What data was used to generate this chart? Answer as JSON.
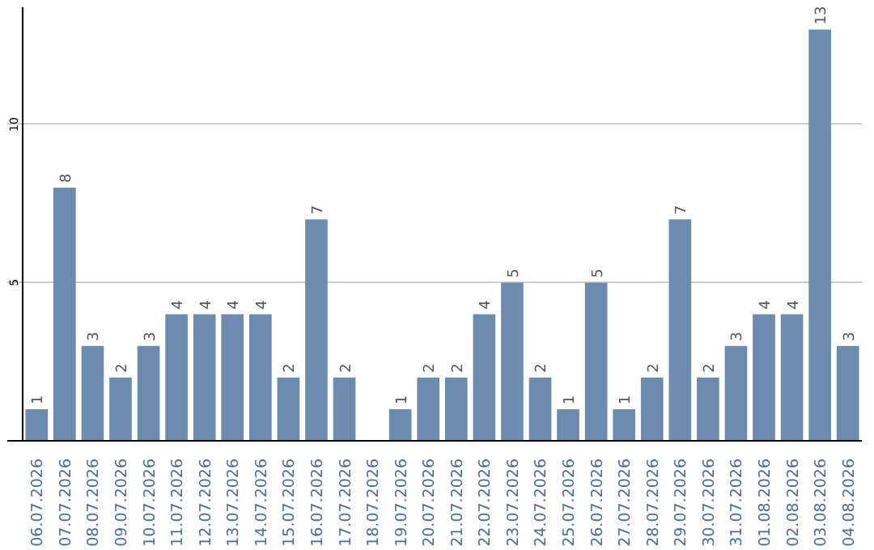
{
  "chart_data": {
    "type": "bar",
    "categories": [
      "06.07.2026",
      "07.07.2026",
      "08.07.2026",
      "09.07.2026",
      "10.07.2026",
      "11.07.2026",
      "12.07.2026",
      "13.07.2026",
      "14.07.2026",
      "15.07.2026",
      "16.07.2026",
      "17.07.2026",
      "18.07.2026",
      "19.07.2026",
      "20.07.2026",
      "21.07.2026",
      "22.07.2026",
      "23.07.2026",
      "24.07.2026",
      "25.07.2026",
      "26.07.2026",
      "27.07.2026",
      "28.07.2026",
      "29.07.2026",
      "30.07.2026",
      "31.07.2026",
      "01.08.2026",
      "02.08.2026",
      "03.08.2026",
      "04.08.2026"
    ],
    "values": [
      1,
      8,
      3,
      2,
      3,
      4,
      4,
      4,
      4,
      2,
      7,
      2,
      null,
      1,
      2,
      2,
      4,
      5,
      2,
      1,
      5,
      1,
      2,
      7,
      2,
      3,
      4,
      4,
      13,
      3
    ],
    "color": "#6b8cae",
    "ylim": [
      0,
      13.7
    ],
    "yticks": [
      5,
      10
    ],
    "grid": "y",
    "data_labels": true
  }
}
